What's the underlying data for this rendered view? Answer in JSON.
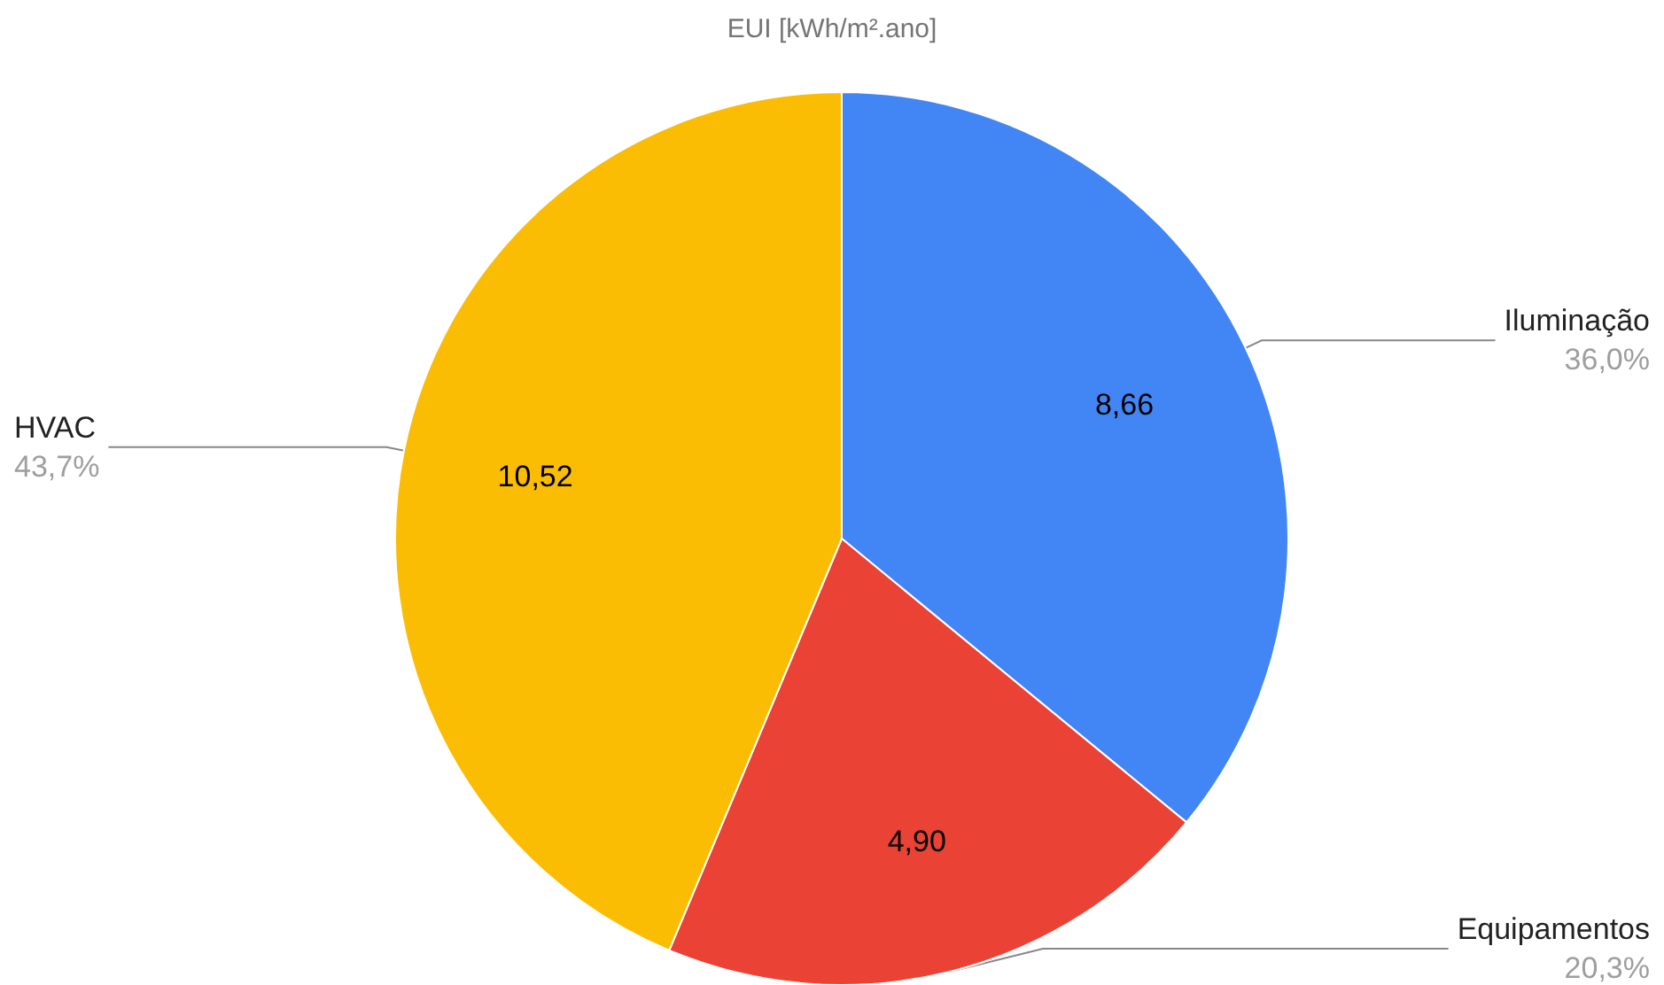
{
  "chart_data": {
    "type": "pie",
    "title": "EUI [kWh/m².ano]",
    "categories": [
      "Iluminação",
      "Equipamentos",
      "HVAC"
    ],
    "values": [
      8.66,
      4.9,
      10.52
    ],
    "value_labels": [
      "8,66",
      "4,90",
      "10,52"
    ],
    "annotations": [
      "36,0%",
      "20,3%",
      "43,7%"
    ],
    "colors": [
      "#4285f4",
      "#ea4335",
      "#fbbc04"
    ]
  }
}
